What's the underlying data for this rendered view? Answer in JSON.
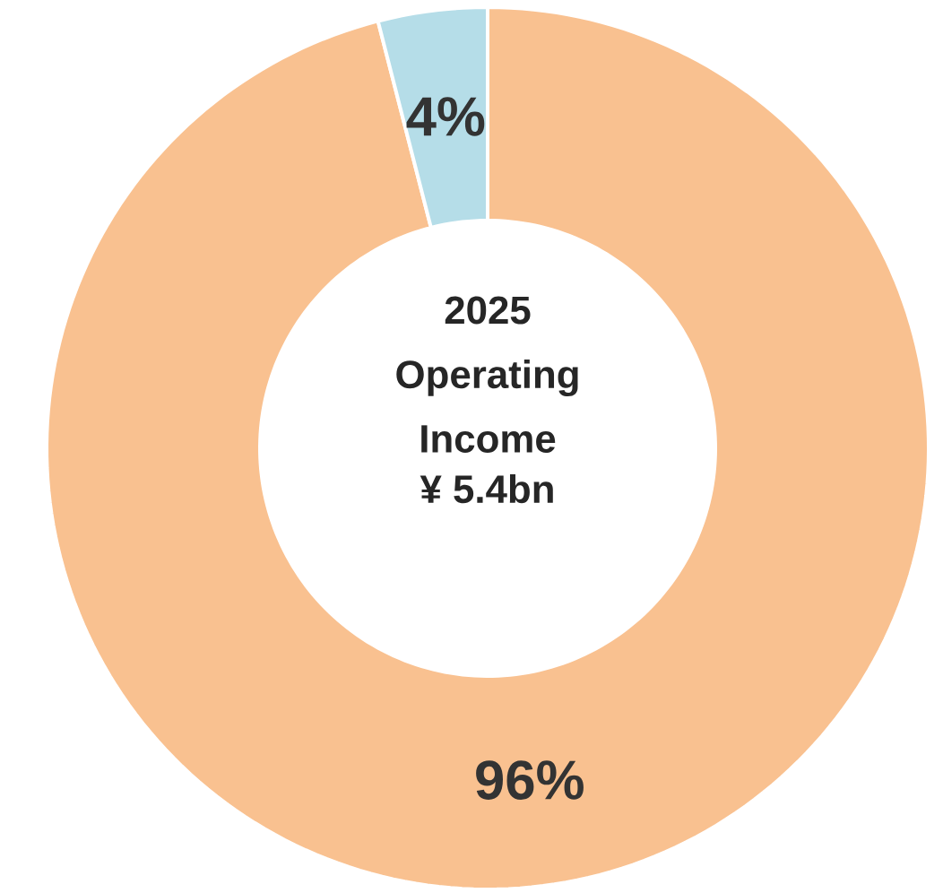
{
  "chart_data": {
    "type": "donut",
    "title": "2025 Operating Income",
    "subtitle": "¥ 5.4bn",
    "categories": [
      null,
      null
    ],
    "values": [
      96,
      4
    ],
    "colors": [
      "#f9c190",
      "#b5dde8"
    ],
    "value_labels": [
      "96%",
      "4%"
    ]
  }
}
